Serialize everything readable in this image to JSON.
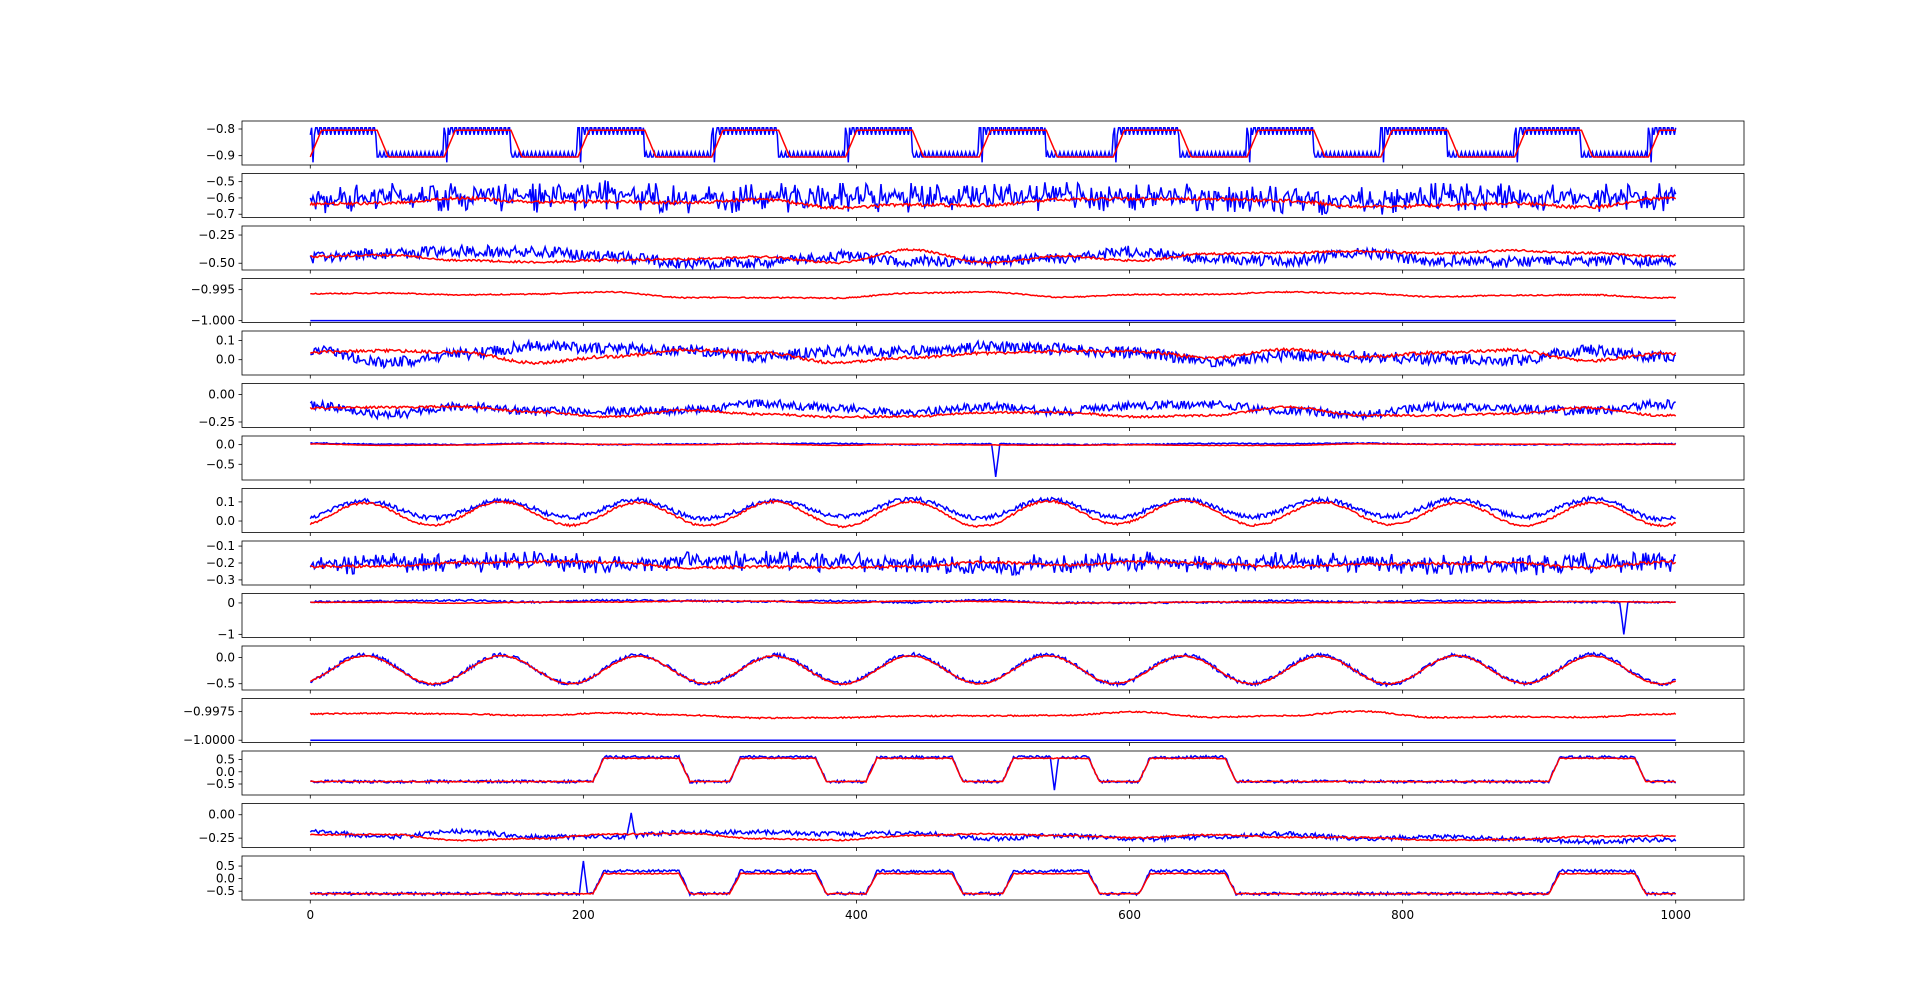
{
  "figure": {
    "colors": {
      "series_a": "#0000ff",
      "series_b": "#ff0000",
      "axes": "#000000",
      "background": "#ffffff"
    },
    "shared_x": {
      "xlim": [
        -50,
        1050
      ],
      "ticks": [
        0,
        200,
        400,
        600,
        800,
        1000
      ],
      "tick_labels": [
        "0",
        "200",
        "400",
        "600",
        "800",
        "1000"
      ]
    }
  },
  "chart_data": [
    {
      "type": "line",
      "ylim": [
        -0.935,
        -0.77
      ],
      "y_ticks": [
        -0.8,
        -0.9
      ],
      "y_tick_labels": [
        "−0.8",
        "−0.9"
      ],
      "grid": false,
      "series": [
        {
          "color": "#0000ff",
          "pattern": "square-noisy",
          "low": -0.905,
          "high": -0.795,
          "noise": 0.03
        },
        {
          "color": "#ff0000",
          "pattern": "square",
          "low": -0.905,
          "high": -0.805
        }
      ]
    },
    {
      "type": "line",
      "ylim": [
        -0.72,
        -0.45
      ],
      "y_ticks": [
        -0.5,
        -0.6,
        -0.7
      ],
      "y_tick_labels": [
        "−0.5",
        "−0.6",
        "−0.7"
      ],
      "grid": false,
      "series": [
        {
          "color": "#0000ff",
          "pattern": "noisy",
          "base": -0.6,
          "amp": 0.02,
          "noise": 0.09
        },
        {
          "color": "#ff0000",
          "pattern": "slow",
          "base": -0.63,
          "amp": 0.03,
          "noise": 0.01
        }
      ]
    },
    {
      "type": "line",
      "ylim": [
        -0.56,
        -0.17
      ],
      "y_ticks": [
        -0.25,
        -0.5
      ],
      "y_tick_labels": [
        "−0.25",
        "−0.50"
      ],
      "grid": false,
      "series": [
        {
          "color": "#0000ff",
          "pattern": "slow",
          "base": -0.45,
          "amp": 0.06,
          "noise": 0.05
        },
        {
          "color": "#ff0000",
          "pattern": "slow",
          "base": -0.44,
          "amp": 0.06,
          "noise": 0.01
        }
      ]
    },
    {
      "type": "line",
      "ylim": [
        -1.0003,
        -0.9932
      ],
      "y_ticks": [
        -0.995,
        -1.0
      ],
      "y_tick_labels": [
        "−0.995",
        "−1.000"
      ],
      "grid": false,
      "series": [
        {
          "color": "#0000ff",
          "pattern": "flat",
          "base": -1.0
        },
        {
          "color": "#ff0000",
          "pattern": "slow",
          "base": -0.9958,
          "amp": 0.0006,
          "noise": 0.0001
        }
      ]
    },
    {
      "type": "line",
      "ylim": [
        -0.08,
        0.15
      ],
      "y_ticks": [
        0.1,
        0.0
      ],
      "y_tick_labels": [
        "0.1",
        "0.0"
      ],
      "grid": false,
      "series": [
        {
          "color": "#0000ff",
          "pattern": "slow",
          "base": 0.03,
          "amp": 0.05,
          "noise": 0.03
        },
        {
          "color": "#ff0000",
          "pattern": "slow",
          "base": 0.02,
          "amp": 0.04,
          "noise": 0.008
        }
      ]
    },
    {
      "type": "line",
      "ylim": [
        -0.3,
        0.1
      ],
      "y_ticks": [
        0.0,
        -0.25
      ],
      "y_tick_labels": [
        "0.00",
        "−0.25"
      ],
      "grid": false,
      "series": [
        {
          "color": "#0000ff",
          "pattern": "slow",
          "base": -0.14,
          "amp": 0.06,
          "noise": 0.04
        },
        {
          "color": "#ff0000",
          "pattern": "slow",
          "base": -0.16,
          "amp": 0.05,
          "noise": 0.01
        }
      ]
    },
    {
      "type": "line",
      "ylim": [
        -0.9,
        0.22
      ],
      "y_ticks": [
        0.0,
        -0.5
      ],
      "y_tick_labels": [
        "0.0",
        "−0.5"
      ],
      "grid": false,
      "series": [
        {
          "color": "#0000ff",
          "pattern": "slow",
          "base": 0.02,
          "amp": 0.02,
          "noise": 0.015,
          "spike_at": 502,
          "spike_value": -0.82
        },
        {
          "color": "#ff0000",
          "pattern": "slow",
          "base": 0.0,
          "amp": 0.02,
          "noise": 0.005
        }
      ]
    },
    {
      "type": "line",
      "ylim": [
        -0.06,
        0.17
      ],
      "y_ticks": [
        0.1,
        0.0
      ],
      "y_tick_labels": [
        "0.1",
        "0.0"
      ],
      "grid": false,
      "series": [
        {
          "color": "#0000ff",
          "pattern": "square-smooth",
          "low": 0.02,
          "high": 0.11,
          "noise": 0.012
        },
        {
          "color": "#ff0000",
          "pattern": "square-smooth",
          "low": -0.02,
          "high": 0.1,
          "noise": 0.006
        }
      ]
    },
    {
      "type": "line",
      "ylim": [
        -0.33,
        -0.07
      ],
      "y_ticks": [
        -0.1,
        -0.2,
        -0.3
      ],
      "y_tick_labels": [
        "−0.1",
        "−0.2",
        "−0.3"
      ],
      "grid": false,
      "series": [
        {
          "color": "#0000ff",
          "pattern": "noisy",
          "base": -0.2,
          "amp": 0.02,
          "noise": 0.06
        },
        {
          "color": "#ff0000",
          "pattern": "slow",
          "base": -0.21,
          "amp": 0.02,
          "noise": 0.008
        }
      ]
    },
    {
      "type": "line",
      "ylim": [
        -1.1,
        0.3
      ],
      "y_ticks": [
        0,
        -1
      ],
      "y_tick_labels": [
        "0",
        "−1"
      ],
      "grid": false,
      "series": [
        {
          "color": "#0000ff",
          "pattern": "slow",
          "base": 0.05,
          "amp": 0.05,
          "noise": 0.03,
          "spike_at": 962,
          "spike_value": -1.0
        },
        {
          "color": "#ff0000",
          "pattern": "slow",
          "base": 0.03,
          "amp": 0.04,
          "noise": 0.01
        }
      ]
    },
    {
      "type": "line",
      "ylim": [
        -0.62,
        0.22
      ],
      "y_ticks": [
        0.0,
        -0.5
      ],
      "y_tick_labels": [
        "0.0",
        "−0.5"
      ],
      "grid": false,
      "series": [
        {
          "color": "#0000ff",
          "pattern": "square-smooth",
          "low": -0.5,
          "high": 0.05,
          "noise": 0.04
        },
        {
          "color": "#ff0000",
          "pattern": "square-smooth",
          "low": -0.5,
          "high": 0.03,
          "noise": 0.012
        }
      ]
    },
    {
      "type": "line",
      "ylim": [
        -1.0002,
        -0.99635
      ],
      "y_ticks": [
        -0.9975,
        -1.0
      ],
      "y_tick_labels": [
        "−0.9975",
        "−1.0000"
      ],
      "grid": false,
      "series": [
        {
          "color": "#0000ff",
          "pattern": "flat",
          "base": -1.0
        },
        {
          "color": "#ff0000",
          "pattern": "slow",
          "base": -0.99775,
          "amp": 0.00035,
          "noise": 6e-05
        }
      ]
    },
    {
      "type": "line",
      "ylim": [
        -0.95,
        0.85
      ],
      "y_ticks": [
        0.5,
        0.0,
        -0.5
      ],
      "y_tick_labels": [
        "0.5",
        "0.0",
        "−0.5"
      ],
      "grid": false,
      "series": [
        {
          "color": "#0000ff",
          "pattern": "square-plateau",
          "low": -0.4,
          "high": 0.6,
          "noise": 0.06,
          "spike_at": 545,
          "spike_value": -0.75
        },
        {
          "color": "#ff0000",
          "pattern": "square-plateau",
          "low": -0.4,
          "high": 0.55,
          "noise": 0.02
        }
      ]
    },
    {
      "type": "line",
      "ylim": [
        -0.35,
        0.12
      ],
      "y_ticks": [
        0.0,
        -0.25
      ],
      "y_tick_labels": [
        "0.00",
        "−0.25"
      ],
      "grid": false,
      "series": [
        {
          "color": "#0000ff",
          "pattern": "drift-down",
          "base": -0.2,
          "amp": 0.04,
          "noise": 0.025,
          "spike_at": 235,
          "spike_value": 0.02
        },
        {
          "color": "#ff0000",
          "pattern": "slow",
          "base": -0.24,
          "amp": 0.04,
          "noise": 0.008
        }
      ]
    },
    {
      "type": "line",
      "ylim": [
        -0.85,
        0.9
      ],
      "y_ticks": [
        0.5,
        0.0,
        -0.5
      ],
      "y_tick_labels": [
        "0.5",
        "0.0",
        "−0.5"
      ],
      "grid": false,
      "series": [
        {
          "color": "#0000ff",
          "pattern": "square-plateau",
          "low": -0.6,
          "high": 0.3,
          "noise": 0.06,
          "spike_at": 200,
          "spike_value": 0.7
        },
        {
          "color": "#ff0000",
          "pattern": "square-plateau",
          "low": -0.6,
          "high": 0.2,
          "noise": 0.02
        }
      ]
    }
  ]
}
